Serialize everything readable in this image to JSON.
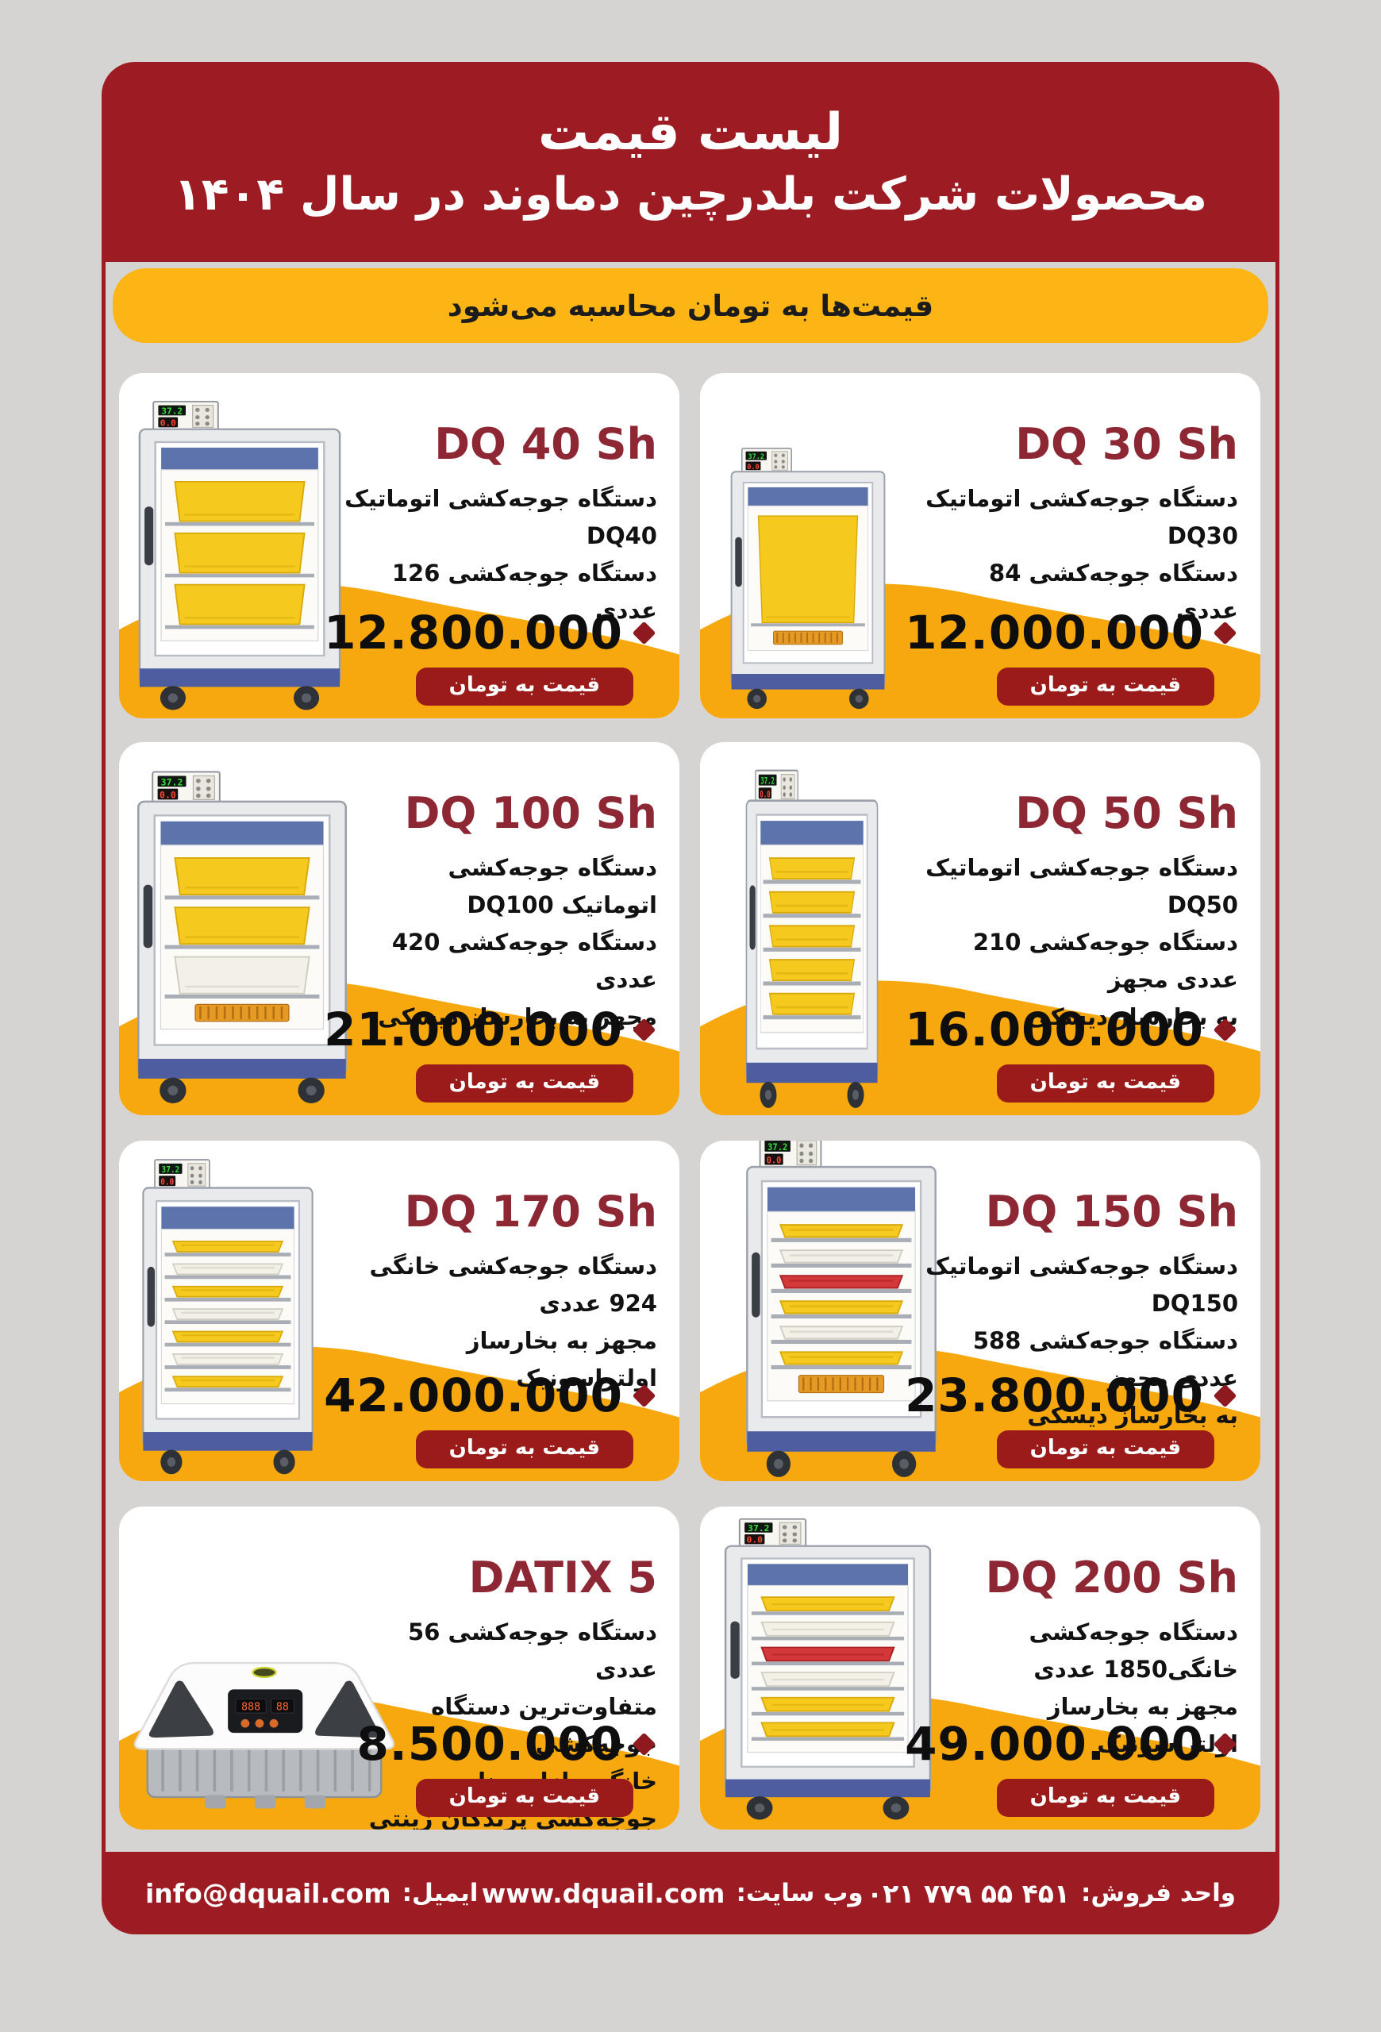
{
  "header": {
    "line1": "لیست قیمت",
    "line2": "محصولات شرکت بلدرچین دماوند در سال ۱۴۰۴"
  },
  "banner": {
    "text": "قیمت‌ها به تومان محاسبه می‌شود"
  },
  "products": [
    {
      "title": "DQ 40 Sh",
      "desc_lines": [
        "دستگاه جوجه‌کشی اتوماتیک DQ40",
        "دستگاه جوجه‌کشی 126 عددی"
      ],
      "price": "12.800.000",
      "badge": "قیمت به تومان",
      "image": {
        "kind": "cabinet",
        "trays": [
          "yellow",
          "yellow",
          "yellow"
        ],
        "heater": false
      }
    },
    {
      "title": "DQ 30 Sh",
      "desc_lines": [
        "دستگاه جوجه‌کشی اتوماتیک DQ30",
        "دستگاه جوجه‌کشی 84 عددی"
      ],
      "price": "12.000.000",
      "badge": "قیمت به تومان",
      "image": {
        "kind": "cabinet",
        "trays": [
          "yellow"
        ],
        "heater": true
      }
    },
    {
      "title": "DQ 100 Sh",
      "desc_lines": [
        "دستگاه جوجه‌کشی",
        "اتوماتیک DQ100",
        "دستگاه جوجه‌کشی 420 عددی",
        "مجهز به بخارساز دیسکی"
      ],
      "price": "21.000.000",
      "badge": "قیمت به تومان",
      "image": {
        "kind": "cabinet",
        "trays": [
          "yellow",
          "yellow",
          "white"
        ],
        "heater": true
      }
    },
    {
      "title": "DQ 50 Sh",
      "desc_lines": [
        "دستگاه جوجه‌کشی اتوماتیک DQ50",
        "دستگاه جوجه‌کشی 210 عددی مجهز",
        "به بخارساز دیسکی"
      ],
      "price": "16.000.000",
      "badge": "قیمت به تومان",
      "image": {
        "kind": "cabinet",
        "trays": [
          "yellow",
          "yellow",
          "yellow",
          "yellow",
          "yellow"
        ],
        "heater": false
      }
    },
    {
      "title": "DQ 170 Sh",
      "desc_lines": [
        "دستگاه جوجه‌کشی خانگی 924 عددی",
        "مجهز به بخارساز اولتراسونیک"
      ],
      "price": "42.000.000",
      "badge": "قیمت به تومان",
      "image": {
        "kind": "cabinet",
        "trays": [
          "yellow",
          "white",
          "yellow",
          "white",
          "yellow",
          "white",
          "yellow"
        ],
        "heater": false
      }
    },
    {
      "title": "DQ 150 Sh",
      "desc_lines": [
        "دستگاه جوجه‌کشی اتوماتیک DQ150",
        "دستگاه جوجه‌کشی 588 عددی مجهز",
        "به بخارساز دیسکی"
      ],
      "price": "23.800.000",
      "badge": "قیمت به تومان",
      "image": {
        "kind": "cabinet",
        "trays": [
          "yellow",
          "white",
          "red",
          "yellow",
          "white",
          "yellow"
        ],
        "heater": true
      }
    },
    {
      "title": "DATIX 5",
      "desc_lines": [
        "دستگاه جوجه‌کشی 56 عددی",
        "متفاوت‌ترین دستگاه جوجه‌کشی",
        "خانگی بازار، مناسب",
        "جوجه‌کشی پرندگان زینتی"
      ],
      "price": "8.500.000",
      "badge": "قیمت به تومان",
      "image": {
        "kind": "datix"
      }
    },
    {
      "title": "DQ 200 Sh",
      "desc_lines": [
        "دستگاه جوجه‌کشی خانگی1850 عددی",
        "مجهز به بخارساز اولتراسونیک"
      ],
      "price": "49.000.000",
      "badge": "قیمت به تومان",
      "image": {
        "kind": "cabinet",
        "trays": [
          "yellow",
          "white",
          "red",
          "white",
          "yellow",
          "yellow"
        ],
        "heater": false
      }
    }
  ],
  "footer": {
    "sales_label": "واحد فروش:",
    "phone": "۰۲۱ ۷۷۹ ۵۵ ۴۵۱",
    "site_label": "وب سایت:",
    "site": "www.dquail.com",
    "email_label": "ایمیل:",
    "email": "info@dquail.com"
  },
  "icons": {
    "price-diamond": "rotated-square ◆"
  },
  "colors": {
    "frame_red": "#9d1c23",
    "title_red": "#8d2733",
    "badge_red": "#9b1b1b",
    "diamond_red": "#8e1a1f",
    "banner_yellow": "#fdb515",
    "wave_yellow": "#f7a80e",
    "background": "#d5d4d2",
    "card_white": "#ffffff",
    "text_black": "#111111"
  }
}
